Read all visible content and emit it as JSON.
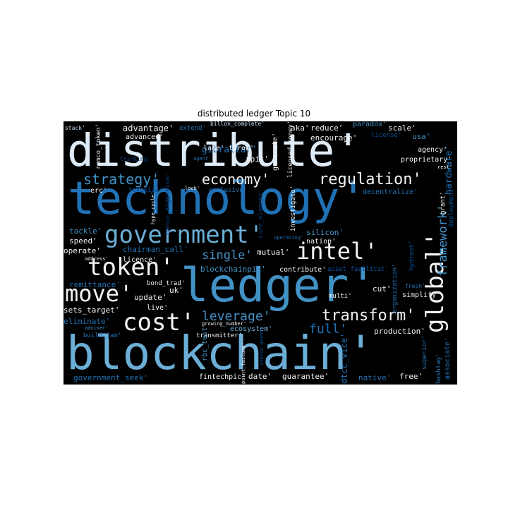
{
  "title": "distributed ledger Topic 10",
  "words": {
    "distribute": "distribute'",
    "technology": "technology'",
    "blockchain": "blockchain'",
    "ledger": "ledger'",
    "government": "government'",
    "token": "token'",
    "intel": "intel'",
    "global": "global'",
    "cost": "cost'",
    "move": "move'",
    "transform": "transform'",
    "regulation": "regulation'",
    "strategy": "strategy'",
    "economy": "economy'",
    "framework": "framework'",
    "leverage": "leverage'",
    "full": "full'",
    "single": "single'",
    "gibraltar": "gibraltar'",
    "advantage": "advantage'",
    "advanced": "advanced'",
    "aka": "aka'",
    "reduce": "reduce'",
    "scale": "scale'",
    "encourage": "encourage'",
    "license": "license'",
    "usa": "usa'",
    "paradox": "paradox'",
    "stack": "stack'",
    "remco_token": "remco_token'",
    "extend": "extend'",
    "billon_complete": "billon_complete'",
    "lake": "lake'",
    "throw": "throw'",
    "apis": "apis'",
    "exclusive": "exclusive'",
    "generate": "generate'",
    "licensed_money": "licensed_money'",
    "proprietary": "proprietary'",
    "agency": "agency'",
    "rest": "rest'",
    "hardware": "hardware'",
    "erc": "erc'",
    "tokenize": "tokenize'",
    "hype_cycle": "hype_cycle'",
    "lock": "lock'",
    "agent": "agent'",
    "thinking": "thinking'",
    "banco_argentina": "banco_argentina'",
    "core_element": "core_element'",
    "investigate": "investigate'",
    "decentralize": "decentralize'",
    "grant": "grant'",
    "deployment": "deployment'",
    "tackle": "tackle'",
    "speed": "speed'",
    "operate": "operate'",
    "chairman_call": "chairman_call'",
    "mutual": "mutual'",
    "silicon": "silicon'",
    "nation": "nation'",
    "operating": "operating'",
    "hydrant": "hydrant'",
    "address": "address'",
    "licence": "licence'",
    "blockchainpic": "blockchainpic'",
    "contribute": "contribute'",
    "asset_facilitat": "asset_facilitat'",
    "remittance": "remittance'",
    "bond_trad": "bond_trad'",
    "update": "update'",
    "uk": "uk'",
    "cut": "cut'",
    "organization": "organization'",
    "fresh": "fresh'",
    "simplify": "simplify'",
    "multi": "multi'",
    "sets_target": "sets_target'",
    "live": "live'",
    "eliminate": "eliminate'",
    "adviser": "adviser'",
    "build_jam": "build_jam'",
    "growing_number": "growing_number'",
    "ecosystem": "ecosystem'",
    "production": "production'",
    "transmitter": "transmitter'",
    "rbc_test": "rbc_test'",
    "point_failure": "point_failure'",
    "storox_grant": "storox_grant'",
    "dtcc_vice": "dtcc_vice'",
    "superior": "superior'",
    "hashtag": "hashtag'",
    "associate": "associate'",
    "government_seek": "government_seek'",
    "fintechpic": "fintechpic'",
    "date": "date'",
    "guarantee": "guarantee'",
    "native": "native'",
    "free": "free'"
  },
  "colors": {
    "white": "#f2f2f2",
    "pale_blue": "#c6dbef",
    "light_blue": "#6baed6",
    "mid_blue": "#4292c6",
    "blue": "#2171b5",
    "dark_blue": "#08519c",
    "navy": "#0b3c7a"
  }
}
